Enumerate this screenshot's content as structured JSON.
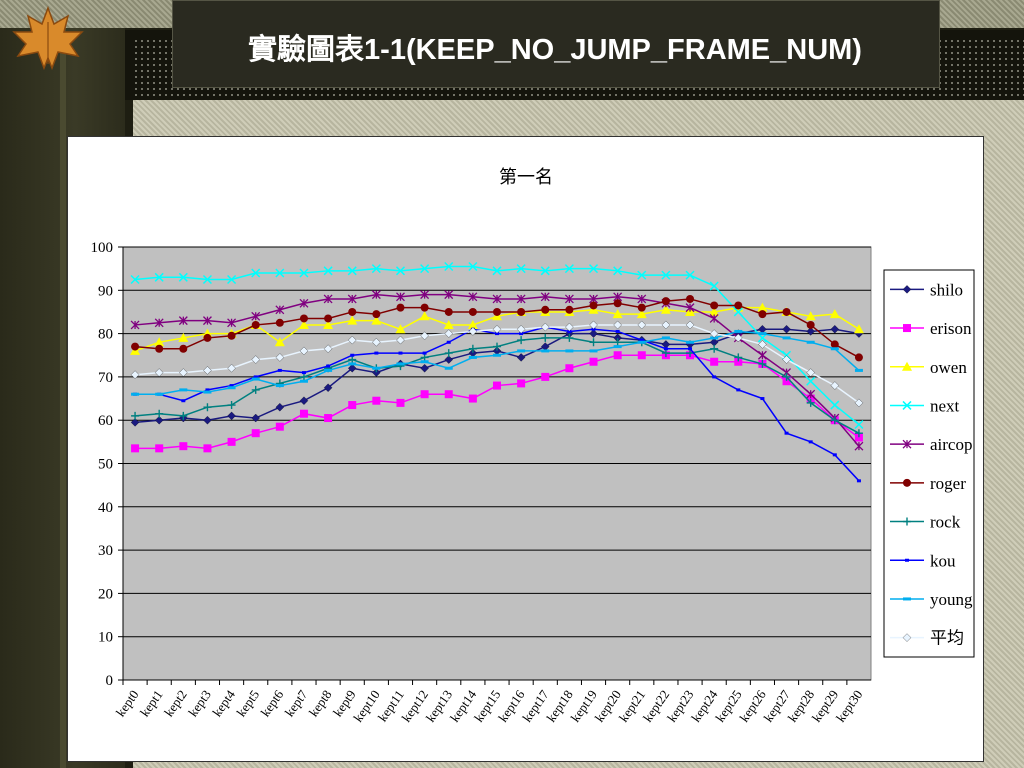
{
  "slide": {
    "title": "實驗圖表1-1(KEEP_NO_JUMP_FRAME_NUM)"
  },
  "chart_data": {
    "type": "line",
    "title": "第一名",
    "xlabel": "",
    "ylabel": "",
    "ylim": [
      0,
      100
    ],
    "yticks": [
      0,
      10,
      20,
      30,
      40,
      50,
      60,
      70,
      80,
      90,
      100
    ],
    "grid": true,
    "legend": "right",
    "categories": [
      "kept0",
      "kept1",
      "kept2",
      "kept3",
      "kept4",
      "kept5",
      "kept6",
      "kept7",
      "kept8",
      "kept9",
      "kept10",
      "kept11",
      "kept12",
      "kept13",
      "kept14",
      "kept15",
      "kept16",
      "kept17",
      "kept18",
      "kept19",
      "kept20",
      "kept21",
      "kept22",
      "kept23",
      "kept24",
      "kept25",
      "kept26",
      "kept27",
      "kept28",
      "kept29",
      "kept30"
    ],
    "series": [
      {
        "name": "shilo",
        "color": "#1a1a80",
        "marker": "diamond",
        "values": [
          59.5,
          60,
          60.5,
          60,
          61,
          60.5,
          63,
          64.5,
          67.5,
          72,
          71,
          73,
          72,
          74,
          75.5,
          76,
          74.5,
          77,
          80,
          80,
          79,
          78.5,
          77.5,
          77.5,
          78,
          80,
          81,
          81,
          80.5,
          81,
          80
        ]
      },
      {
        "name": "erison",
        "color": "#ff00ff",
        "marker": "square",
        "values": [
          53.5,
          53.5,
          54,
          53.5,
          55,
          57,
          58.5,
          61.5,
          60.5,
          63.5,
          64.5,
          64,
          66,
          66,
          65,
          68,
          68.5,
          70,
          72,
          73.5,
          75,
          75,
          75,
          75,
          73.5,
          73.5,
          73,
          69,
          65,
          60,
          56
        ]
      },
      {
        "name": "owen",
        "color": "#ffff00",
        "marker": "triangle",
        "values": [
          76,
          78,
          79,
          80,
          80,
          82,
          78,
          82,
          82,
          83,
          83,
          81,
          84,
          82,
          82,
          84,
          85,
          85,
          85,
          85.5,
          84.5,
          84.5,
          85.5,
          85,
          85,
          86,
          86,
          85,
          84,
          84.5,
          81
        ]
      },
      {
        "name": "next",
        "color": "#00ffff",
        "marker": "x",
        "values": [
          92.5,
          93,
          93,
          92.5,
          92.5,
          94,
          94,
          94,
          94.5,
          94.5,
          95,
          94.5,
          95,
          95.5,
          95.5,
          94.5,
          95,
          94.5,
          95,
          95,
          94.5,
          93.5,
          93.5,
          93.5,
          91,
          85,
          79,
          75,
          69,
          63.5,
          59
        ]
      },
      {
        "name": "aircop",
        "color": "#800080",
        "marker": "star",
        "values": [
          82,
          82.5,
          83,
          83,
          82.5,
          84,
          85.5,
          87,
          88,
          88,
          89,
          88.5,
          89,
          89,
          88.5,
          88,
          88,
          88.5,
          88,
          88,
          88.5,
          88,
          87,
          86,
          83.5,
          79,
          75,
          71,
          66,
          60.5,
          54
        ]
      },
      {
        "name": "roger",
        "color": "#800000",
        "marker": "circle",
        "values": [
          77,
          76.5,
          76.5,
          79,
          79.5,
          82,
          82.5,
          83.5,
          83.5,
          85,
          84.5,
          86,
          86,
          85,
          85,
          85,
          85,
          85.5,
          85.5,
          86.5,
          87,
          86,
          87.5,
          88,
          86.5,
          86.5,
          84.5,
          85,
          82,
          77.5,
          74.5
        ]
      },
      {
        "name": "rock",
        "color": "#008080",
        "marker": "plus",
        "values": [
          61,
          61.5,
          61,
          63,
          63.5,
          67,
          68.5,
          70,
          72,
          74,
          72,
          72.5,
          74.5,
          75.5,
          76.5,
          77,
          78.5,
          79,
          79,
          78,
          78,
          78,
          75.5,
          75.5,
          76.5,
          74.5,
          73,
          70,
          64,
          60,
          57
        ]
      },
      {
        "name": "kou",
        "color": "#0000ff",
        "marker": "dash",
        "values": [
          66,
          66,
          64.5,
          67,
          68,
          70,
          71.5,
          71,
          72.5,
          75,
          75.5,
          75.5,
          75.5,
          78,
          81,
          80,
          80,
          81.5,
          80.5,
          81,
          80.5,
          78.5,
          76.5,
          76.5,
          70,
          67,
          65,
          57,
          55,
          52,
          46
        ]
      },
      {
        "name": "young",
        "color": "#00aeef",
        "marker": "bar",
        "values": [
          66,
          66,
          67,
          66.5,
          67.5,
          69.5,
          68,
          69,
          71.5,
          73,
          72,
          73,
          73.5,
          72,
          74.5,
          75,
          76,
          76,
          76,
          76,
          77,
          78,
          79,
          78,
          79,
          80.5,
          80,
          79,
          78,
          76.5,
          71.5
        ]
      },
      {
        "name": "平均",
        "color": "#e8f4ff",
        "marker": "diamond",
        "values": [
          70.5,
          71,
          71,
          71.5,
          72,
          74,
          74.5,
          76,
          76.5,
          78.5,
          78,
          78.5,
          79.5,
          80,
          80.5,
          81,
          81,
          81.5,
          81.5,
          82,
          82,
          82,
          82,
          82,
          80,
          79,
          77.5,
          74,
          71,
          68,
          64
        ]
      }
    ]
  }
}
